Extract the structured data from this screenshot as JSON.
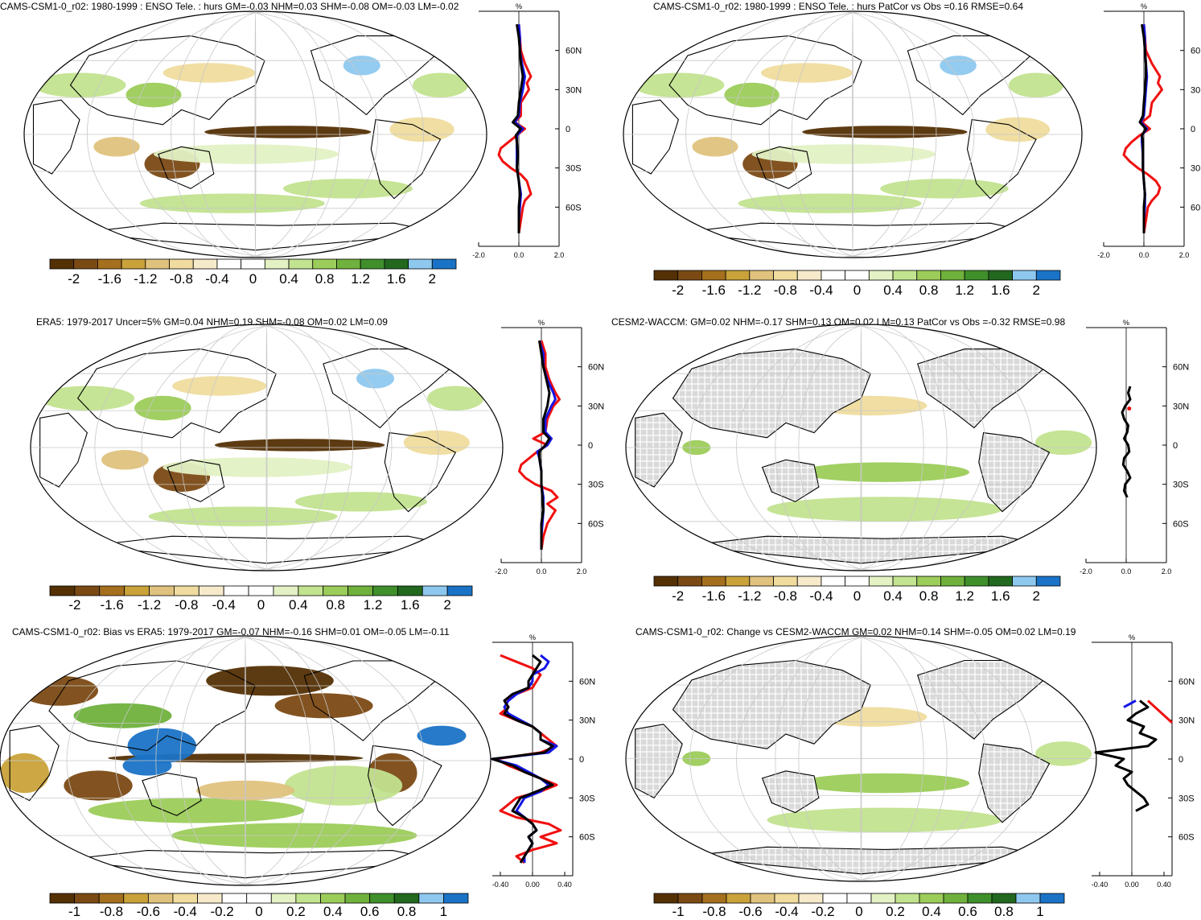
{
  "colors": {
    "scale": [
      "#543005",
      "#7b4a14",
      "#a4701d",
      "#c9a23a",
      "#dfc27d",
      "#efdc9e",
      "#f6eacb",
      "#ffffff",
      "#ffffff",
      "#e3f1c4",
      "#c2e38f",
      "#9ccc5a",
      "#6fb13c",
      "#3f8f2b",
      "#22681f",
      "#8ec8ef",
      "#1a73c6"
    ],
    "model_line": "#1515e6",
    "obs_line": "#f01010",
    "ref_line": "#000000",
    "land_mask": "#d9d9d9"
  },
  "panels": [
    {
      "id": "p1",
      "title": "CAMS-CSM1-0_r02: 1980-1999 : ENSO Tele. : hurs GM=-0.03 NHM=0.03 SHM=-0.08 OM=-0.03 LM=-0.02",
      "map_type": "field",
      "colorbar_labels": [
        "-2",
        "-1.6",
        "-1.2",
        "-0.8",
        "-0.4",
        "0",
        "0.4",
        "0.8",
        "1.2",
        "1.6",
        "2"
      ],
      "zonal": {
        "unit": "%",
        "xticks": [
          "-2.0",
          "0.0",
          "2.0"
        ],
        "yticks": [
          "60N",
          "30N",
          "0",
          "30S",
          "60S"
        ],
        "xlim": [
          -2,
          2
        ],
        "series": [
          {
            "name": "obs",
            "color": "#f01010",
            "lat": [
              80,
              70,
              60,
              50,
              40,
              35,
              30,
              20,
              10,
              5,
              0,
              -5,
              -10,
              -15,
              -20,
              -25,
              -30,
              -35,
              -40,
              -45,
              -50,
              -55,
              -60,
              -70,
              -80
            ],
            "values": [
              0,
              0.05,
              0.1,
              0.3,
              0.6,
              0.4,
              0.5,
              0.1,
              0.1,
              -0.2,
              0.3,
              -0.1,
              -0.5,
              -0.9,
              -1.0,
              -0.8,
              -0.4,
              0.1,
              0.4,
              0.5,
              0.6,
              0.3,
              0.2,
              0.1,
              0
            ]
          },
          {
            "name": "model",
            "color": "#1515e6",
            "lat": [
              80,
              70,
              60,
              50,
              40,
              30,
              20,
              10,
              5,
              0,
              -5,
              -10,
              -20,
              -30,
              -40,
              -50,
              -60,
              -70,
              -80
            ],
            "values": [
              0,
              0.05,
              0.05,
              0.15,
              0.3,
              0.2,
              0.05,
              0,
              -0.2,
              0.2,
              -0.1,
              -0.1,
              -0.1,
              -0.1,
              0,
              0.1,
              0.05,
              0,
              0
            ]
          },
          {
            "name": "ref",
            "color": "#000000",
            "lat": [
              80,
              70,
              60,
              50,
              40,
              30,
              20,
              10,
              5,
              0,
              -5,
              -10,
              -20,
              -30,
              -40,
              -50,
              -60,
              -70,
              -80
            ],
            "values": [
              -0.1,
              0,
              0.05,
              0.1,
              0.2,
              0.1,
              0,
              -0.05,
              -0.3,
              0.1,
              -0.15,
              -0.1,
              -0.05,
              -0.1,
              0,
              0.05,
              0,
              0,
              0
            ]
          }
        ]
      }
    },
    {
      "id": "p2",
      "title": "CAMS-CSM1-0_r02: 1980-1999 : ENSO Tele. : hurs PatCor vs Obs =0.16 RMSE=0.64",
      "map_type": "field",
      "colorbar_labels": [
        "-2",
        "-1.6",
        "-1.2",
        "-0.8",
        "-0.4",
        "0",
        "0.4",
        "0.8",
        "1.2",
        "1.6",
        "2"
      ],
      "zonal": {
        "unit": "%",
        "xticks": [
          "-2.0",
          "0.0",
          "2.0"
        ],
        "yticks": [
          "60N",
          "30N",
          "0",
          "30S",
          "60S"
        ],
        "xlim": [
          -2,
          2
        ],
        "series": [
          {
            "name": "obs",
            "color": "#f01010",
            "lat": [
              80,
              70,
              60,
              50,
              40,
              35,
              30,
              20,
              10,
              5,
              0,
              -5,
              -10,
              -15,
              -20,
              -25,
              -30,
              -35,
              -40,
              -45,
              -50,
              -55,
              -60,
              -70,
              -80
            ],
            "values": [
              0,
              0.05,
              0.1,
              0.4,
              0.8,
              0.7,
              0.9,
              0.4,
              0.3,
              -0.1,
              0.3,
              -0.2,
              -0.6,
              -0.9,
              -1.0,
              -0.7,
              -0.3,
              0.2,
              0.6,
              0.8,
              0.7,
              0.4,
              0.2,
              0.1,
              0
            ]
          },
          {
            "name": "model",
            "color": "#1515e6",
            "lat": [
              80,
              70,
              60,
              50,
              40,
              30,
              20,
              10,
              5,
              0,
              -5,
              -10,
              -20,
              -30,
              -40,
              -50,
              -60,
              -70,
              -80
            ],
            "values": [
              0,
              0.05,
              0.05,
              0.1,
              0.15,
              0.1,
              0.05,
              0,
              -0.15,
              0.15,
              -0.1,
              -0.1,
              -0.05,
              -0.05,
              0,
              0.05,
              0.05,
              0,
              0
            ]
          },
          {
            "name": "ref",
            "color": "#000000",
            "lat": [
              80,
              70,
              60,
              50,
              40,
              30,
              20,
              10,
              5,
              0,
              -5,
              -10,
              -20,
              -30,
              -40,
              -50,
              -60,
              -70,
              -80
            ],
            "values": [
              -0.1,
              0,
              0.05,
              0.1,
              0.1,
              0.05,
              0,
              -0.05,
              -0.2,
              0.1,
              -0.1,
              -0.05,
              -0.05,
              -0.05,
              0,
              0.05,
              0,
              0,
              0
            ]
          }
        ]
      }
    },
    {
      "id": "p3",
      "title": "ERA5: 1979-2017 Uncer=5% GM=0.04 NHM=0.19 SHM=-0.08 OM=0.02 LM=0.09",
      "map_type": "field",
      "colorbar_labels": [
        "-2",
        "-1.6",
        "-1.2",
        "-0.8",
        "-0.4",
        "0",
        "0.4",
        "0.8",
        "1.2",
        "1.6",
        "2"
      ],
      "zonal": {
        "unit": "%",
        "xticks": [
          "-2.0",
          "0.0",
          "2.0"
        ],
        "yticks": [
          "60N",
          "30N",
          "0",
          "30S",
          "60S"
        ],
        "xlim": [
          -2,
          2
        ],
        "series": [
          {
            "name": "obs",
            "color": "#f01010",
            "lat": [
              80,
              70,
              60,
              50,
              40,
              35,
              30,
              20,
              10,
              5,
              0,
              -5,
              -10,
              -15,
              -20,
              -25,
              -30,
              -35,
              -40,
              -45,
              -50,
              -55,
              -60,
              -70,
              -80
            ],
            "values": [
              0,
              0.2,
              0.2,
              0.4,
              0.7,
              0.9,
              0.6,
              0.3,
              0.2,
              -0.4,
              0.3,
              -0.2,
              -0.6,
              -1.0,
              -1.1,
              -0.8,
              -0.3,
              0.5,
              0.8,
              0.3,
              0.7,
              0.5,
              0.3,
              0.1,
              0
            ]
          },
          {
            "name": "model",
            "color": "#1515e6",
            "lat": [
              80,
              70,
              60,
              50,
              40,
              35,
              30,
              20,
              10,
              5,
              0,
              -5,
              -10,
              -20,
              -30,
              -40,
              -50,
              -60,
              -70,
              -80
            ],
            "values": [
              -0.1,
              0.1,
              0.1,
              0.3,
              0.6,
              0.7,
              0.5,
              0.2,
              0.2,
              0.5,
              0.3,
              -0.2,
              -0.1,
              0,
              0,
              0.1,
              0.1,
              0.05,
              0,
              0
            ]
          },
          {
            "name": "ref",
            "color": "#000000",
            "lat": [
              80,
              70,
              60,
              50,
              40,
              30,
              20,
              10,
              5,
              0,
              -5,
              -10,
              -20,
              -30,
              -40,
              -50,
              -60,
              -70,
              -80
            ],
            "values": [
              -0.1,
              0,
              0.1,
              0.25,
              0.4,
              0.3,
              0.1,
              0.1,
              0.4,
              0.2,
              -0.1,
              -0.1,
              0,
              0,
              0.05,
              0.1,
              0,
              0,
              0
            ]
          }
        ]
      }
    },
    {
      "id": "p4",
      "title": "CESM2-WACCM: GM=0.02 NHM=-0.17 SHM=0.13 OM=0.02 LM=0.13 PatCor vs Obs =-0.32 RMSE=0.98",
      "map_type": "masked",
      "colorbar_labels": [
        "-2",
        "-1.6",
        "-1.2",
        "-0.8",
        "-0.4",
        "0",
        "0.4",
        "0.8",
        "1.2",
        "1.6",
        "2"
      ],
      "zonal": {
        "unit": "%",
        "xticks": [
          "-2.0",
          "0.0",
          "2.0"
        ],
        "yticks": [
          "60N",
          "30N",
          "0",
          "30S",
          "60S"
        ],
        "xlim": [
          -2,
          2
        ],
        "series": [
          {
            "name": "ref",
            "color": "#000000",
            "lat": [
              45,
              40,
              35,
              30,
              25,
              20,
              15,
              10,
              5,
              0,
              -5,
              -10,
              -15,
              -20,
              -25,
              -30,
              -35,
              -40
            ],
            "values": [
              0.2,
              0.1,
              0.2,
              -0.05,
              -0.2,
              -0.1,
              0.1,
              0.05,
              -0.1,
              0.1,
              0.15,
              -0.1,
              -0.15,
              0.05,
              0.2,
              -0.05,
              -0.1,
              0.05
            ]
          },
          {
            "name": "obs",
            "color": "#f01010",
            "lat": [
              28
            ],
            "values": [
              0.15
            ]
          }
        ]
      }
    },
    {
      "id": "p5",
      "title": "CAMS-CSM1-0_r02: Bias vs ERA5: 1979-2017 GM=-0.07 NHM=-0.16 SHM=0.01 OM=-0.05 LM=-0.11",
      "map_type": "bias",
      "colorbar_labels": [
        "-1",
        "-0.8",
        "-0.6",
        "-0.4",
        "-0.2",
        "0",
        "0.2",
        "0.4",
        "0.6",
        "0.8",
        "1"
      ],
      "zonal": {
        "unit": "%",
        "xticks": [
          "-0.40",
          "0.00",
          "0.40"
        ],
        "yticks": [
          "60N",
          "30N",
          "0",
          "30S",
          "60S"
        ],
        "xlim": [
          -0.5,
          0.5
        ],
        "series": [
          {
            "name": "obs",
            "color": "#f01010",
            "lat": [
              80,
              75,
              70,
              65,
              60,
              55,
              50,
              45,
              40,
              35,
              30,
              25,
              20,
              15,
              10,
              5,
              0,
              -5,
              -10,
              -15,
              -20,
              -25,
              -30,
              -35,
              -40,
              -45,
              -50,
              -55,
              -60,
              -65,
              -70,
              -75,
              -80
            ],
            "values": [
              -0.4,
              -0.2,
              0,
              0.1,
              0.05,
              0,
              -0.2,
              -0.35,
              -0.3,
              -0.4,
              -0.2,
              0,
              0.1,
              0.2,
              0.3,
              0.1,
              -0.45,
              -0.3,
              -0.1,
              0.1,
              0.3,
              0.1,
              -0.2,
              -0.3,
              -0.4,
              -0.2,
              0.2,
              0.35,
              0.1,
              0.3,
              0,
              -0.2,
              -0.1
            ]
          },
          {
            "name": "model",
            "color": "#1515e6",
            "lat": [
              80,
              75,
              70,
              65,
              60,
              55,
              50,
              45,
              40,
              35,
              30,
              25,
              20,
              15,
              10,
              5,
              0,
              -5,
              -10,
              -15,
              -20,
              -25,
              -30,
              -35,
              -40,
              -45,
              -50,
              -55,
              -60,
              -65,
              -70,
              -75,
              -80
            ],
            "values": [
              0.1,
              0.2,
              0.15,
              0,
              0,
              -0.05,
              -0.2,
              -0.3,
              -0.35,
              -0.3,
              -0.15,
              0,
              0.1,
              0.1,
              0.3,
              0.2,
              -0.5,
              -0.2,
              -0.05,
              0.1,
              0.2,
              0.1,
              -0.1,
              -0.15,
              -0.2,
              -0.1,
              0,
              0.05,
              -0.05,
              0,
              -0.05,
              -0.1,
              -0.1
            ]
          },
          {
            "name": "ref",
            "color": "#000000",
            "lat": [
              80,
              75,
              70,
              65,
              60,
              55,
              50,
              45,
              40,
              35,
              30,
              25,
              20,
              15,
              10,
              5,
              0,
              -5,
              -10,
              -15,
              -20,
              -25,
              -30,
              -35,
              -40,
              -45,
              -50,
              -55,
              -60,
              -65,
              -70,
              -75,
              -80
            ],
            "values": [
              0,
              0.1,
              0.05,
              0,
              -0.05,
              -0.05,
              -0.25,
              -0.35,
              -0.3,
              -0.35,
              -0.2,
              0,
              0.1,
              0.1,
              0.25,
              0.15,
              -0.5,
              -0.25,
              -0.1,
              0.1,
              0.25,
              0.05,
              -0.15,
              -0.2,
              -0.25,
              -0.1,
              0,
              0.05,
              -0.05,
              0,
              -0.05,
              -0.1,
              -0.15
            ]
          }
        ]
      }
    },
    {
      "id": "p6",
      "title": "CAMS-CSM1-0_r02: Change vs CESM2-WACCM GM=0.02 NHM=0.14 SHM=-0.05 OM=0.02 LM=0.19",
      "map_type": "masked",
      "colorbar_labels": [
        "-1",
        "-0.8",
        "-0.6",
        "-0.4",
        "-0.2",
        "0",
        "0.2",
        "0.4",
        "0.6",
        "0.8",
        "1"
      ],
      "zonal": {
        "unit": "%",
        "xticks": [
          "-0.40",
          "0.00",
          "0.40"
        ],
        "yticks": [
          "60N",
          "30N",
          "0",
          "30S",
          "60S"
        ],
        "xlim": [
          -0.5,
          0.5
        ],
        "series": [
          {
            "name": "ref",
            "color": "#000000",
            "lat": [
              45,
              40,
              35,
              30,
              25,
              20,
              15,
              10,
              5,
              0,
              -5,
              -10,
              -15,
              -20,
              -25,
              -30,
              -35,
              -40
            ],
            "values": [
              0.1,
              0.2,
              0.05,
              -0.05,
              0.15,
              0.1,
              0.3,
              0.2,
              -0.45,
              -0.1,
              -0.2,
              0,
              -0.1,
              -0.05,
              0.05,
              0.15,
              0.2,
              0.05
            ]
          },
          {
            "name": "model",
            "color": "#1515e6",
            "lat": [
              45,
              40
            ],
            "values": [
              0.05,
              -0.1
            ]
          },
          {
            "name": "obs",
            "color": "#f01010",
            "lat": [
              45,
              28
            ],
            "values": [
              0.2,
              0.55
            ]
          }
        ]
      }
    }
  ]
}
